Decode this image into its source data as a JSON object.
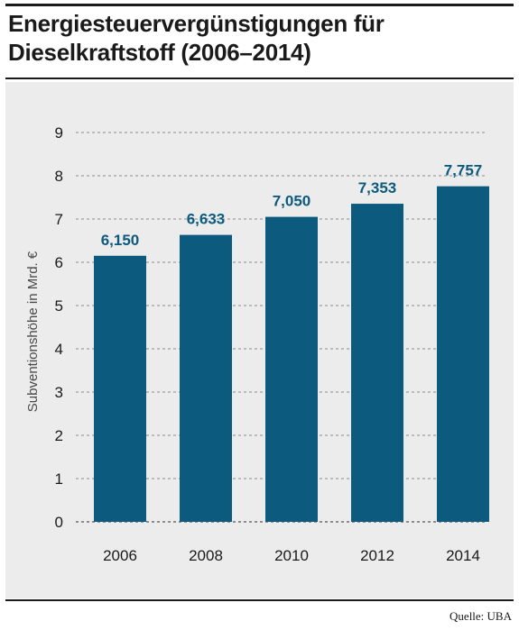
{
  "title_line1": "Energiesteuervergünstigungen für",
  "title_line2": "Dieselkraftstoff (2006–2014)",
  "source": "Quelle: UBA",
  "colors": {
    "bar": "#0c5a7d",
    "label": "#0c5a7d",
    "panel": "#ececec",
    "grid": "#8a8a8a"
  },
  "chart_data": {
    "type": "bar",
    "categories": [
      "2006",
      "2008",
      "2010",
      "2012",
      "2014"
    ],
    "values": [
      6.15,
      6.633,
      7.05,
      7.353,
      7.757
    ],
    "value_labels": [
      "6,150",
      "6,633",
      "7,050",
      "7,353",
      "7,757"
    ],
    "ylabel": "Subventionshöhe in Mrd. €",
    "ylim": [
      0,
      9
    ],
    "yticks": [
      0,
      1,
      2,
      3,
      4,
      5,
      6,
      7,
      8,
      9
    ],
    "grid": true
  }
}
